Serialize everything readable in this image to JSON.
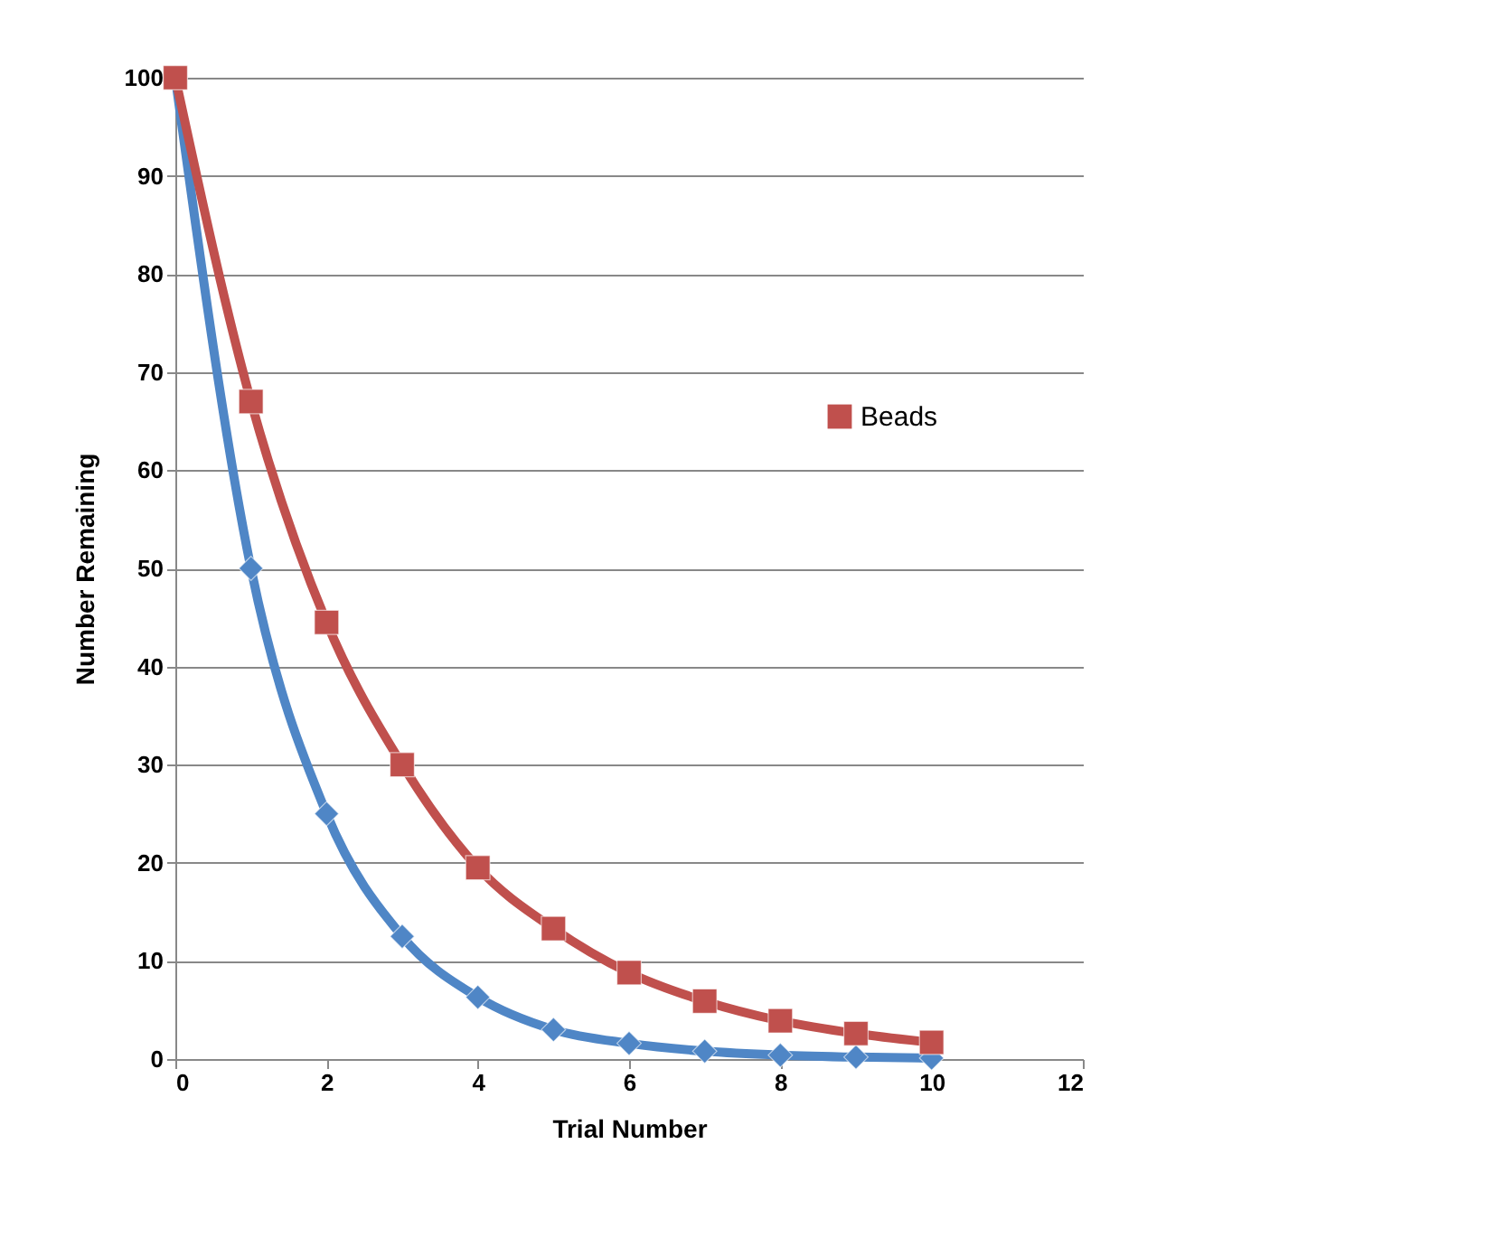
{
  "chart_data": {
    "type": "line",
    "xlabel": "Trial Number",
    "ylabel": "Number Remaining",
    "x": [
      0,
      1,
      2,
      3,
      4,
      5,
      6,
      7,
      8,
      9,
      10
    ],
    "series": [
      {
        "color": "#4f86c6",
        "marker": "diamond",
        "values": [
          100,
          50,
          25,
          12.5,
          6.3,
          3,
          1.6,
          0.8,
          0.4,
          0.2,
          0.1
        ]
      },
      {
        "name": "Beads",
        "color": "#c0504d",
        "marker": "square",
        "values": [
          100,
          67,
          44.5,
          30,
          19.5,
          13.3,
          8.8,
          5.9,
          3.9,
          2.6,
          1.7
        ]
      }
    ],
    "xlim": [
      0,
      12
    ],
    "xticks": [
      0,
      2,
      4,
      6,
      8,
      10,
      12
    ],
    "ylim": [
      0,
      100
    ],
    "yticks": [
      0,
      10,
      20,
      30,
      40,
      50,
      60,
      70,
      80,
      90,
      100
    ],
    "grid": "y",
    "legend": "right",
    "line_style": "solid"
  }
}
